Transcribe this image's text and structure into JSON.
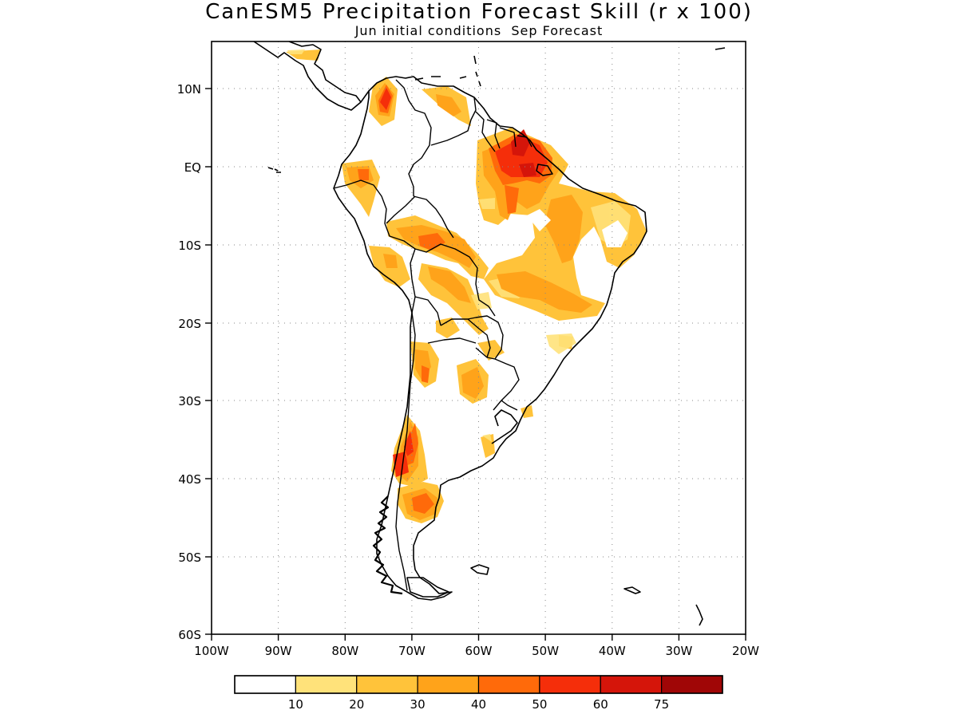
{
  "title": "CanESM5 Precipitation Forecast Skill (r x 100)",
  "subtitle": "Jun initial conditions  Sep Forecast",
  "map": {
    "lat_ticks": [
      "10N",
      "EQ",
      "10S",
      "20S",
      "30S",
      "40S",
      "50S",
      "60S"
    ],
    "lon_ticks": [
      "100W",
      "90W",
      "80W",
      "70W",
      "60W",
      "50W",
      "40W",
      "30W",
      "20W"
    ],
    "lon_range": [
      -100,
      -20
    ],
    "lat_range": [
      -60,
      16
    ],
    "gridlines": true
  },
  "colorbar": {
    "labels": [
      "10",
      "20",
      "30",
      "40",
      "50",
      "60",
      "75"
    ],
    "colors": [
      "#ffffff",
      "#ffe27a",
      "#ffc33a",
      "#ffa31a",
      "#ff6a0a",
      "#f52e0a",
      "#d5150a",
      "#a00606"
    ]
  }
}
